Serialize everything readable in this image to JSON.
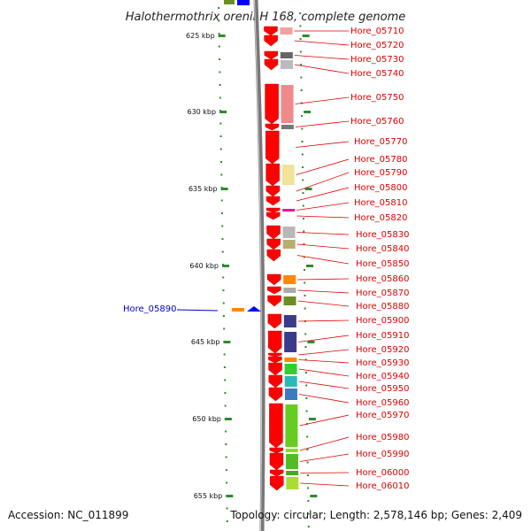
{
  "title": "Halothermothrix orenii H 168, complete genome",
  "footer": {
    "accession": "Accession: NC_011899",
    "topology": "Topology: circular; Length: 2,578,146 bp; Genes: 2,409"
  },
  "kbp_ticks": [
    "625 kbp",
    "630 kbp",
    "635 kbp",
    "640 kbp",
    "645 kbp",
    "650 kbp",
    "655 kbp"
  ],
  "genes": [
    {
      "label": "Hore_05710",
      "color": "#ff0000",
      "feature_color": "#f4a0a0"
    },
    {
      "label": "Hore_05720",
      "color": "#ff0000",
      "feature_color": ""
    },
    {
      "label": "Hore_05730",
      "color": "#ff0000",
      "feature_color": "#666666"
    },
    {
      "label": "Hore_05740",
      "color": "#ff0000",
      "feature_color": "#bbbbbb"
    },
    {
      "label": "Hore_05750",
      "color": "#ff0000",
      "feature_color": "#f08a8a"
    },
    {
      "label": "Hore_05760",
      "color": "#ff0000",
      "feature_color": "#777777"
    },
    {
      "label": "Hore_05770",
      "color": "#ff0000",
      "feature_color": ""
    },
    {
      "label": "Hore_05780",
      "color": "#ff0000",
      "feature_color": "#f2e29a"
    },
    {
      "label": "Hore_05790",
      "color": "#ff0000",
      "feature_color": ""
    },
    {
      "label": "Hore_05800",
      "color": "#ff0000",
      "feature_color": ""
    },
    {
      "label": "Hore_05810",
      "color": "#ff0000",
      "feature_color": "#e8189a"
    },
    {
      "label": "Hore_05820",
      "color": "#ff0000",
      "feature_color": ""
    },
    {
      "label": "Hore_05830",
      "color": "#ff0000",
      "feature_color": "#b8b8b8"
    },
    {
      "label": "Hore_05840",
      "color": "#ff0000",
      "feature_color": "#b8ae70"
    },
    {
      "label": "Hore_05850",
      "color": "#ff0000",
      "feature_color": ""
    },
    {
      "label": "Hore_05860",
      "color": "#ff0000",
      "feature_color": "#ff8800"
    },
    {
      "label": "Hore_05870",
      "color": "#ff0000",
      "feature_color": "#aaaaaa"
    },
    {
      "label": "Hore_05880",
      "color": "#ff0000",
      "feature_color": "#6b8e23"
    },
    {
      "label": "Hore_05900",
      "color": "#ff0000",
      "feature_color": "#3a3a8a"
    },
    {
      "label": "Hore_05910",
      "color": "#ff0000",
      "feature_color": "#3a3a8a"
    },
    {
      "label": "Hore_05920",
      "color": "#ff0000",
      "feature_color": ""
    },
    {
      "label": "Hore_05930",
      "color": "#ff0000",
      "feature_color": "#ff8800"
    },
    {
      "label": "Hore_05940",
      "color": "#ff0000",
      "feature_color": "#33cc33"
    },
    {
      "label": "Hore_05950",
      "color": "#ff0000",
      "feature_color": "#2ab8b8"
    },
    {
      "label": "Hore_05960",
      "color": "#ff0000",
      "feature_color": "#3b7bbf"
    },
    {
      "label": "Hore_05970",
      "color": "#ff0000",
      "feature_color": "#66cc22"
    },
    {
      "label": "Hore_05980",
      "color": "#ff0000",
      "feature_color": "#88dd22"
    },
    {
      "label": "Hore_05990",
      "color": "#ff0000",
      "feature_color": "#55bb22"
    },
    {
      "label": "Hore_06000",
      "color": "#ff0000",
      "feature_color": "#44aa22"
    },
    {
      "label": "Hore_06010",
      "color": "#ff0000",
      "feature_color": "#aadd33"
    }
  ],
  "reverse_gene": {
    "label": "Hore_05890",
    "color": "#0000ff",
    "feature_color": "#ff8800"
  }
}
